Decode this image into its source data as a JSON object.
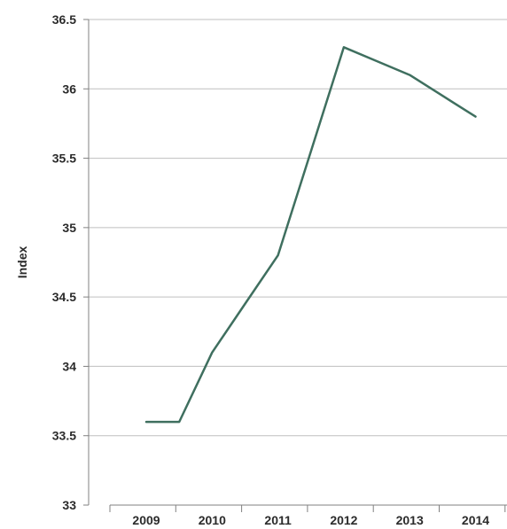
{
  "chart_data": {
    "type": "line",
    "title": "",
    "xlabel": "",
    "ylabel": "Index",
    "categories": [
      "2009",
      "2010",
      "2011",
      "2012",
      "2013",
      "2014"
    ],
    "x": [
      2009,
      2009.5,
      2010,
      2010.5,
      2011,
      2011.5,
      2012,
      2012.5,
      2013,
      2013.5,
      2014
    ],
    "series": [
      {
        "values": [
          33.6,
          33.6,
          34.1,
          34.45,
          34.8,
          35.55,
          36.3,
          36.2,
          36.1,
          35.95,
          35.8
        ],
        "color": "#3f6f5f"
      }
    ],
    "ylim": [
      33,
      36.5
    ],
    "yticks": [
      33,
      33.5,
      34,
      34.5,
      35,
      35.5,
      36,
      36.5
    ],
    "ytick_labels": [
      "33",
      "33.5",
      "34",
      "34.5",
      "35",
      "35.5",
      "36",
      "36.5"
    ],
    "grid": true,
    "colors": {
      "line": "#3f6f5f",
      "grid": "#bfbfbf",
      "axis": "#808080"
    }
  }
}
